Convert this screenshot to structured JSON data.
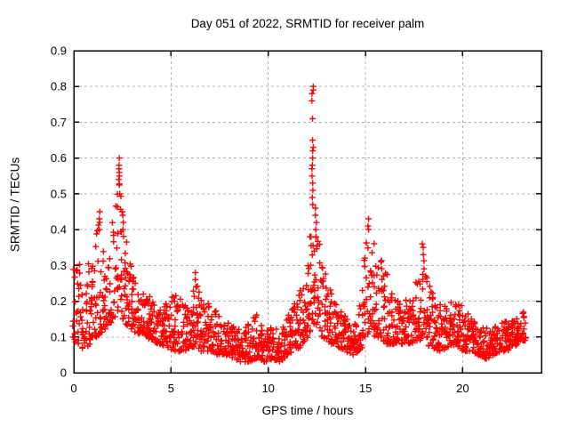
{
  "page": {
    "background": "#ffffff"
  },
  "chart_data": {
    "type": "scatter",
    "title": "Day 051 of 2022, SRMTID for receiver palm",
    "xlabel": "GPS time / hours",
    "ylabel": "SRMTID / TECUs",
    "xlim": [
      0,
      24.05
    ],
    "ylim": [
      0,
      0.9
    ],
    "xticks": [
      0,
      5,
      10,
      15,
      20
    ],
    "xtick_labels": [
      "0",
      "5",
      "10",
      "15",
      "20"
    ],
    "yticks": [
      0,
      0.1,
      0.2,
      0.3,
      0.4,
      0.5,
      0.6,
      0.7,
      0.8,
      0.9
    ],
    "ytick_labels": [
      "0",
      "0.1",
      "0.2",
      "0.3",
      "0.4",
      "0.5",
      "0.6",
      "0.7",
      "0.8",
      "0.9"
    ],
    "grid": true,
    "legend": "none",
    "marker": {
      "shape": "plus",
      "color": "#ff0000",
      "size": 7,
      "stroke_width": 1.4
    },
    "axis_color": "#000000",
    "grid_color": "#b0b0b0",
    "x_start": 0.0,
    "x_end": 23.25,
    "bin_hours": 0.1,
    "points_per_bin": [
      6,
      9
    ],
    "value_skew": 1.6,
    "seed": 51,
    "envelope": [
      [
        0.0,
        0.07,
        0.32
      ],
      [
        0.3,
        0.08,
        0.31
      ],
      [
        0.6,
        0.06,
        0.26
      ],
      [
        0.9,
        0.09,
        0.33
      ],
      [
        1.1,
        0.1,
        0.38
      ],
      [
        1.35,
        0.1,
        0.44
      ],
      [
        1.6,
        0.12,
        0.31
      ],
      [
        1.9,
        0.14,
        0.38
      ],
      [
        2.2,
        0.16,
        0.5
      ],
      [
        2.4,
        0.16,
        0.57
      ],
      [
        2.6,
        0.14,
        0.44
      ],
      [
        2.8,
        0.13,
        0.33
      ],
      [
        3.0,
        0.12,
        0.28
      ],
      [
        3.3,
        0.11,
        0.25
      ],
      [
        3.6,
        0.11,
        0.22
      ],
      [
        4.0,
        0.09,
        0.21
      ],
      [
        4.4,
        0.08,
        0.18
      ],
      [
        4.8,
        0.07,
        0.2
      ],
      [
        5.2,
        0.06,
        0.23
      ],
      [
        5.6,
        0.06,
        0.2
      ],
      [
        6.0,
        0.07,
        0.19
      ],
      [
        6.3,
        0.07,
        0.25
      ],
      [
        6.6,
        0.06,
        0.21
      ],
      [
        7.0,
        0.06,
        0.19
      ],
      [
        7.4,
        0.05,
        0.17
      ],
      [
        7.8,
        0.05,
        0.15
      ],
      [
        8.2,
        0.04,
        0.13
      ],
      [
        8.6,
        0.03,
        0.12
      ],
      [
        9.0,
        0.03,
        0.14
      ],
      [
        9.4,
        0.04,
        0.17
      ],
      [
        9.8,
        0.03,
        0.14
      ],
      [
        10.2,
        0.04,
        0.13
      ],
      [
        10.6,
        0.03,
        0.13
      ],
      [
        11.0,
        0.05,
        0.17
      ],
      [
        11.4,
        0.06,
        0.2
      ],
      [
        11.8,
        0.08,
        0.24
      ],
      [
        12.1,
        0.1,
        0.33
      ],
      [
        12.3,
        0.13,
        0.45
      ],
      [
        12.5,
        0.12,
        0.4
      ],
      [
        12.7,
        0.1,
        0.33
      ],
      [
        13.0,
        0.09,
        0.27
      ],
      [
        13.3,
        0.08,
        0.22
      ],
      [
        13.6,
        0.07,
        0.18
      ],
      [
        14.0,
        0.06,
        0.16
      ],
      [
        14.4,
        0.05,
        0.14
      ],
      [
        14.8,
        0.07,
        0.22
      ],
      [
        15.0,
        0.09,
        0.33
      ],
      [
        15.2,
        0.1,
        0.4
      ],
      [
        15.5,
        0.1,
        0.37
      ],
      [
        15.8,
        0.09,
        0.33
      ],
      [
        16.1,
        0.08,
        0.29
      ],
      [
        16.5,
        0.08,
        0.24
      ],
      [
        16.9,
        0.08,
        0.2
      ],
      [
        17.3,
        0.08,
        0.23
      ],
      [
        17.7,
        0.09,
        0.29
      ],
      [
        18.0,
        0.09,
        0.32
      ],
      [
        18.4,
        0.07,
        0.25
      ],
      [
        18.8,
        0.06,
        0.2
      ],
      [
        19.2,
        0.07,
        0.19
      ],
      [
        19.6,
        0.08,
        0.21
      ],
      [
        20.0,
        0.06,
        0.18
      ],
      [
        20.4,
        0.06,
        0.16
      ],
      [
        20.8,
        0.05,
        0.14
      ],
      [
        21.2,
        0.04,
        0.13
      ],
      [
        21.6,
        0.05,
        0.13
      ],
      [
        22.0,
        0.06,
        0.14
      ],
      [
        22.4,
        0.06,
        0.15
      ],
      [
        22.8,
        0.08,
        0.16
      ],
      [
        23.1,
        0.09,
        0.17
      ],
      [
        23.25,
        0.09,
        0.16
      ]
    ],
    "spikes": [
      {
        "h": 1.33,
        "values": [
          0.4,
          0.42,
          0.43,
          0.45
        ]
      },
      {
        "h": 2.33,
        "values": [
          0.5,
          0.54,
          0.55,
          0.56,
          0.57,
          0.58,
          0.6
        ]
      },
      {
        "h": 2.52,
        "values": [
          0.4,
          0.42,
          0.44,
          0.45
        ]
      },
      {
        "h": 6.28,
        "values": [
          0.24,
          0.26,
          0.28
        ]
      },
      {
        "h": 12.28,
        "values": [
          0.47,
          0.49,
          0.51,
          0.53,
          0.55,
          0.57,
          0.58,
          0.6,
          0.62,
          0.63,
          0.65,
          0.71,
          0.76,
          0.78,
          0.79,
          0.8
        ]
      },
      {
        "h": 12.45,
        "values": [
          0.38,
          0.4,
          0.42,
          0.44,
          0.46
        ]
      },
      {
        "h": 15.15,
        "values": [
          0.4,
          0.41,
          0.43
        ]
      },
      {
        "h": 17.95,
        "values": [
          0.33,
          0.35,
          0.36
        ]
      }
    ]
  }
}
